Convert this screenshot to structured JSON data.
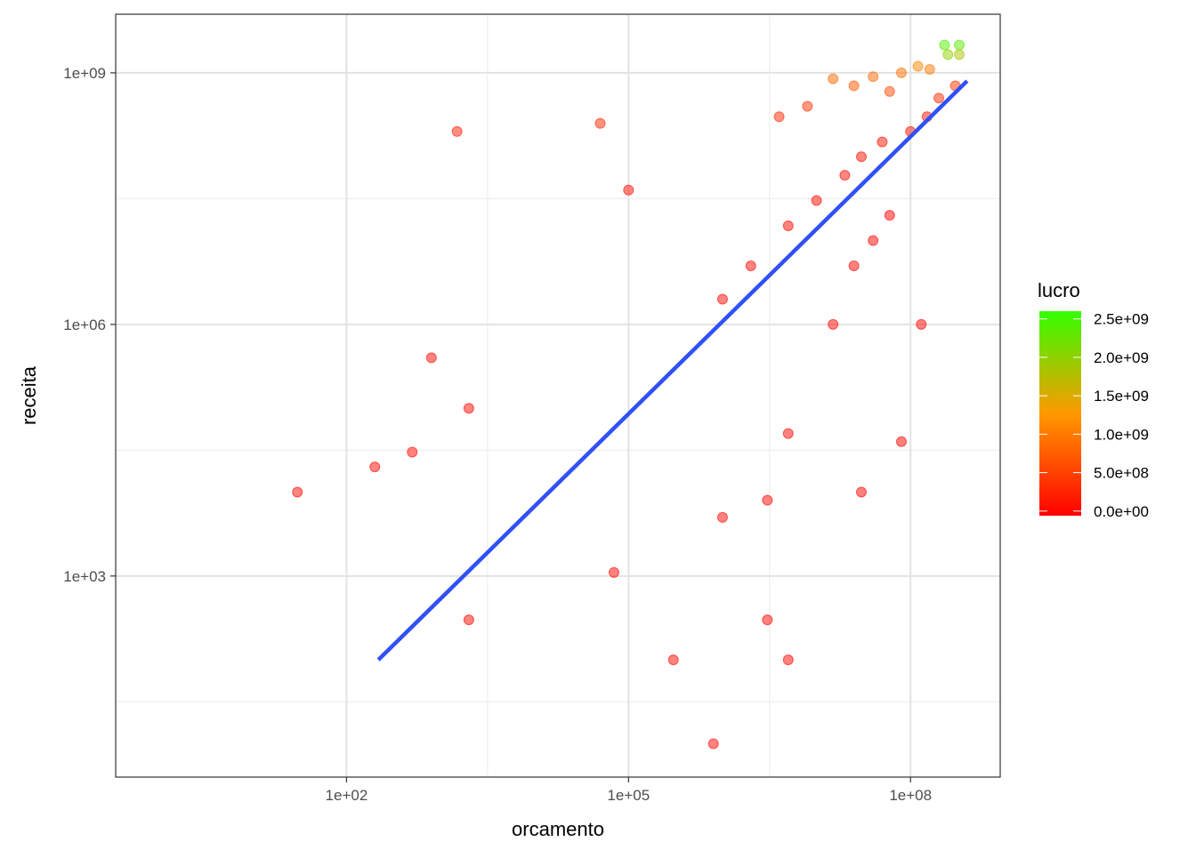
{
  "chart_data": {
    "type": "scatter",
    "xlabel": "orcamento",
    "ylabel": "receita",
    "x_scale": "log10",
    "y_scale": "log10",
    "xlim": [
      0.35,
      900000000
    ],
    "ylim": [
      4,
      5000000000
    ],
    "x_ticks": [
      {
        "value": 100,
        "label": "1e+02"
      },
      {
        "value": 100000,
        "label": "1e+05"
      },
      {
        "value": 100000000,
        "label": "1e+08"
      }
    ],
    "y_ticks": [
      {
        "value": 1000,
        "label": "1e+03"
      },
      {
        "value": 1000000,
        "label": "1e+06"
      },
      {
        "value": 1000000000,
        "label": "1e+09"
      }
    ],
    "grid": true,
    "point_color_low": "#ff0000",
    "point_color_high": "#33ff00",
    "trend_color": "#3050f8",
    "trend_line": {
      "x": [
        218,
        400000000
      ],
      "y": [
        100,
        800000000
      ]
    },
    "legend": {
      "title": "lucro",
      "position": "right",
      "breaks": [
        {
          "value": 0,
          "label": "0.0e+00"
        },
        {
          "value": 500000000,
          "label": "5.0e+08"
        },
        {
          "value": 1000000000,
          "label": "1.0e+09"
        },
        {
          "value": 1500000000,
          "label": "1.5e+09"
        },
        {
          "value": 2000000000,
          "label": "2.0e+09"
        },
        {
          "value": 2500000000,
          "label": "2.5e+09"
        }
      ],
      "range": [
        -60000000,
        2600000000
      ]
    },
    "points": [
      {
        "x": 230000000,
        "y": 2150000000,
        "lucro": 2400000000
      },
      {
        "x": 330000000,
        "y": 2150000000,
        "lucro": 2350000000
      },
      {
        "x": 250000000,
        "y": 1650000000,
        "lucro": 2000000000
      },
      {
        "x": 330000000,
        "y": 1650000000,
        "lucro": 1800000000
      },
      {
        "x": 120000000,
        "y": 1200000000,
        "lucro": 1100000000
      },
      {
        "x": 160000000,
        "y": 1100000000,
        "lucro": 1000000000
      },
      {
        "x": 80000000,
        "y": 1000000000,
        "lucro": 900000000
      },
      {
        "x": 40000000,
        "y": 900000000,
        "lucro": 850000000
      },
      {
        "x": 15000000,
        "y": 850000000,
        "lucro": 840000000
      },
      {
        "x": 25000000,
        "y": 700000000,
        "lucro": 690000000
      },
      {
        "x": 60000000,
        "y": 600000000,
        "lucro": 560000000
      },
      {
        "x": 8000000,
        "y": 400000000,
        "lucro": 390000000
      },
      {
        "x": 4000000,
        "y": 300000000,
        "lucro": 290000000
      },
      {
        "x": 300000000,
        "y": 700000000,
        "lucro": 400000000
      },
      {
        "x": 200000000,
        "y": 500000000,
        "lucro": 300000000
      },
      {
        "x": 150000000,
        "y": 300000000,
        "lucro": 150000000
      },
      {
        "x": 100000000,
        "y": 200000000,
        "lucro": 100000000
      },
      {
        "x": 50000000,
        "y": 150000000,
        "lucro": 100000000
      },
      {
        "x": 30000000,
        "y": 100000000,
        "lucro": 70000000
      },
      {
        "x": 20000000,
        "y": 60000000,
        "lucro": 40000000
      },
      {
        "x": 10000000,
        "y": 30000000,
        "lucro": 20000000
      },
      {
        "x": 5000000,
        "y": 15000000,
        "lucro": 10000000
      },
      {
        "x": 2000000,
        "y": 5000000,
        "lucro": 3000000
      },
      {
        "x": 1000000,
        "y": 2000000,
        "lucro": 1000000
      },
      {
        "x": 40000000,
        "y": 10000000,
        "lucro": -30000000
      },
      {
        "x": 25000000,
        "y": 5000000,
        "lucro": -20000000
      },
      {
        "x": 15000000,
        "y": 1000000,
        "lucro": -14000000
      },
      {
        "x": 60000000,
        "y": 20000000,
        "lucro": -40000000
      },
      {
        "x": 130000000,
        "y": 1000000,
        "lucro": -129000000
      },
      {
        "x": 80000000,
        "y": 40000,
        "lucro": -80000000
      },
      {
        "x": 30000000,
        "y": 10000,
        "lucro": -30000000
      },
      {
        "x": 5000000,
        "y": 50000,
        "lucro": -5000000
      },
      {
        "x": 3000000,
        "y": 8000,
        "lucro": -3000000
      },
      {
        "x": 1000000,
        "y": 5000,
        "lucro": -1000000
      },
      {
        "x": 5000000,
        "y": 100,
        "lucro": -5000000
      },
      {
        "x": 800000,
        "y": 10,
        "lucro": -800000
      },
      {
        "x": 1500,
        "y": 200000000,
        "lucro": 200000000
      },
      {
        "x": 50000,
        "y": 250000000,
        "lucro": 250000000
      },
      {
        "x": 100000,
        "y": 40000000,
        "lucro": 40000000
      },
      {
        "x": 30,
        "y": 10000,
        "lucro": 10000
      },
      {
        "x": 200,
        "y": 20000,
        "lucro": 20000
      },
      {
        "x": 500,
        "y": 30000,
        "lucro": 30000
      },
      {
        "x": 800,
        "y": 400000,
        "lucro": 400000
      },
      {
        "x": 2000,
        "y": 100000,
        "lucro": 100000
      },
      {
        "x": 70000,
        "y": 1100,
        "lucro": -69000
      },
      {
        "x": 2000,
        "y": 300,
        "lucro": -1700
      },
      {
        "x": 300000,
        "y": 100,
        "lucro": -300000
      },
      {
        "x": 3000000,
        "y": 300,
        "lucro": -3000000
      }
    ]
  }
}
